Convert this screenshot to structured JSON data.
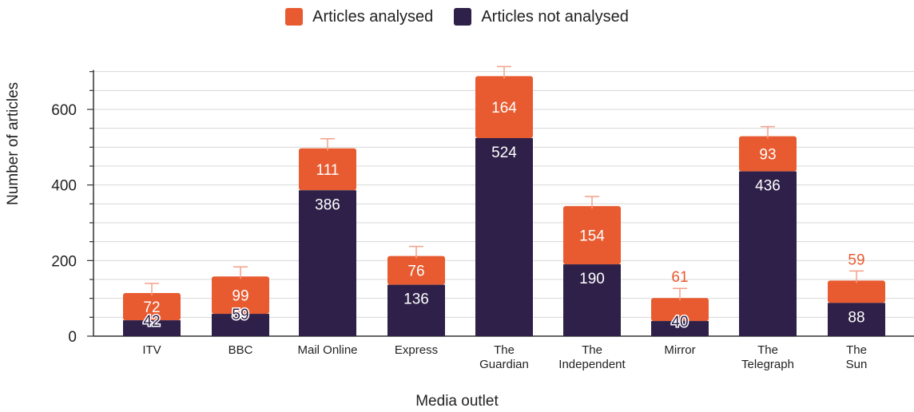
{
  "chart_data": {
    "type": "bar",
    "stacked": true,
    "categories": [
      "ITV",
      "BBC",
      "Mail Online",
      "Express",
      "The Guardian",
      "The Independent",
      "Mirror",
      "The Telegraph",
      "The Sun"
    ],
    "series": [
      {
        "name": "Articles not analysed",
        "color": "#2e2048",
        "values": [
          42,
          59,
          386,
          136,
          524,
          190,
          40,
          436,
          88
        ]
      },
      {
        "name": "Articles analysed",
        "color": "#e85b30",
        "values": [
          72,
          99,
          111,
          76,
          164,
          154,
          61,
          93,
          59
        ]
      }
    ],
    "legend": {
      "placement": "top-center",
      "order": [
        "Articles analysed",
        "Articles not analysed"
      ]
    },
    "xlabel": "Media outlet",
    "ylabel": "Number of articles",
    "ylim": [
      0,
      700
    ],
    "yticks": [
      0,
      200,
      400,
      600
    ],
    "error_bars": true,
    "grid": true
  }
}
